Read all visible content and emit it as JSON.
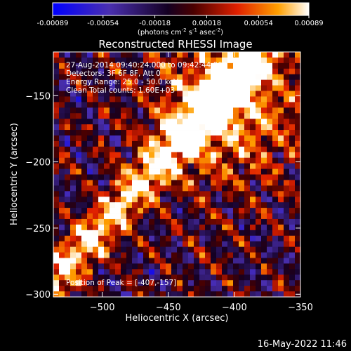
{
  "chart_data": {
    "type": "heatmap",
    "title": "Reconstructed RHESSI Image",
    "xlabel": "Heliocentric X (arcsec)",
    "ylabel": "Heliocentric Y (arcsec)",
    "xlim": [
      -537,
      -350
    ],
    "ylim": [
      -302,
      -117
    ],
    "xticks": [
      -500,
      -450,
      -400,
      -350
    ],
    "yticks": [
      -150,
      -200,
      -250,
      -300
    ],
    "colorbar": {
      "min": -0.00089,
      "max": 0.00089,
      "ticks": [
        "-0.00089",
        "-0.00054",
        "-0.00018",
        "0.00018",
        "0.00054",
        "0.00089"
      ],
      "unit_prefix": "(photons cm",
      "unit_exp1": "-2",
      "unit_mid1": " s",
      "unit_exp2": "-1",
      "unit_mid2": " asec",
      "unit_exp3": "-2",
      "unit_suffix": ")"
    },
    "annotations": {
      "time": "27-Aug-2014 09:40:24.000 to 09:42:44.000",
      "detectors": "Detectors: 3F 6F 8F, Att 0",
      "energy": "Energy Range: 25.0 - 50.0 keV",
      "method": "Clean    Total counts: 1.60E+03",
      "peak": "Position of Peak = [-407,-157]"
    },
    "peak": {
      "x": -407,
      "y": -157
    },
    "grid": false,
    "colormap": [
      "#0000ff",
      "#5a2f9e",
      "#000000",
      "#c81400",
      "#ff7800",
      "#ffffff"
    ]
  },
  "footer": {
    "timestamp": "16-May-2022 11:46"
  }
}
